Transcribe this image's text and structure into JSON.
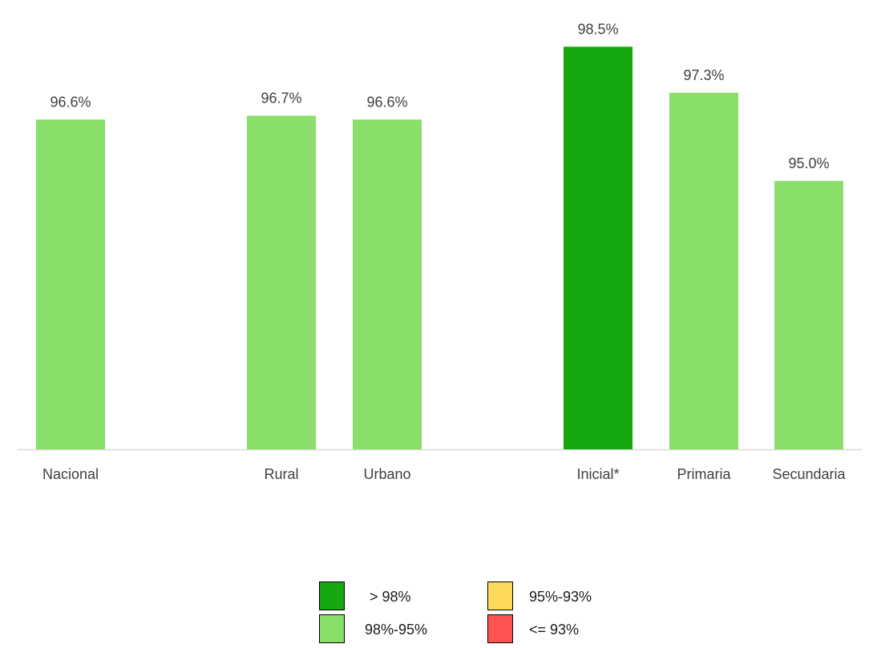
{
  "chart_data": {
    "type": "bar",
    "title": "",
    "xlabel": "",
    "ylabel": "",
    "ylim": [
      88,
      99.3
    ],
    "categories": [
      "Nacional",
      "Rural",
      "Urbano",
      "Inicial*",
      "Primaria",
      "Secundaria"
    ],
    "values": [
      96.6,
      96.7,
      96.6,
      98.5,
      97.3,
      95.0
    ],
    "data_labels": [
      "96.6%",
      "96.7%",
      "96.6%",
      "98.5%",
      "97.3%",
      "95.0%"
    ],
    "groups": [
      [
        "Nacional"
      ],
      [
        "Rural",
        "Urbano"
      ],
      [
        "Inicial*",
        "Primaria",
        "Secundaria"
      ]
    ],
    "bar_colors": [
      "#8ade6a",
      "#8ade6a",
      "#8ade6a",
      "#16a90f",
      "#8ade6a",
      "#8ade6a"
    ],
    "grid": false,
    "legend_position": "bottom-center"
  },
  "legend": [
    {
      "label": "> 98%",
      "color": "#16a90f"
    },
    {
      "label": "95%-93%",
      "color": "#ffd95a"
    },
    {
      "label": "98%-95%",
      "color": "#8ade6a"
    },
    {
      "label": "<= 93%",
      "color": "#ff5252"
    }
  ]
}
